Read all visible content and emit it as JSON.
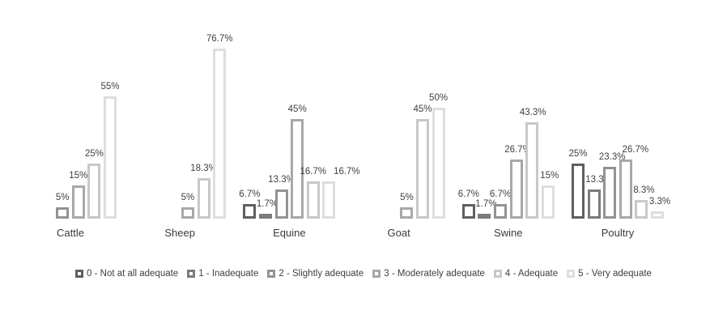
{
  "chart_data": {
    "type": "bar",
    "title": "",
    "categories": [
      "Cattle",
      "Sheep",
      "Equine",
      "Goat",
      "Swine",
      "Poultry"
    ],
    "value_unit": "%",
    "ylim": [
      0,
      80
    ],
    "grid": false,
    "axes_visible": false,
    "legend_position": "bottom",
    "series": [
      {
        "name": "0 - Not at all adequate",
        "color": "#5f5f5f",
        "values": [
          null,
          null,
          6.7,
          null,
          6.7,
          25
        ],
        "labels": [
          null,
          null,
          "6.7%",
          null,
          "6.7%",
          "25%"
        ],
        "label_dx": [
          0,
          0,
          0,
          0,
          0,
          0
        ]
      },
      {
        "name": "1 - Inadequate",
        "color": "#7b7b7b",
        "values": [
          null,
          null,
          1.7,
          null,
          1.7,
          13.3
        ],
        "labels": [
          null,
          null,
          "1.7%",
          null,
          "1.7%",
          "13.3%"
        ],
        "label_dx": [
          0,
          0,
          2,
          0,
          2,
          6
        ]
      },
      {
        "name": "2 - Slightly adequate",
        "color": "#939393",
        "values": [
          5,
          null,
          13.3,
          null,
          6.7,
          23.3
        ],
        "labels": [
          "5%",
          null,
          "13.3%",
          null,
          "6.7%",
          "23.3%"
        ],
        "label_dx": [
          0,
          0,
          0,
          0,
          0,
          3
        ]
      },
      {
        "name": "3 - Moderately adequate",
        "color": "#a8a8a8",
        "values": [
          15,
          5,
          45,
          5,
          26.7,
          26.7
        ],
        "labels": [
          "15%",
          "5%",
          "45%",
          "5%",
          "26.7%",
          "26.7%"
        ],
        "label_dx": [
          0,
          0,
          0,
          0,
          2,
          12
        ]
      },
      {
        "name": "4 - Adequate",
        "color": "#c8c8c8",
        "values": [
          25,
          18.3,
          16.7,
          45,
          43.3,
          8.3
        ],
        "labels": [
          "25%",
          "18.3%",
          "16.7%",
          "45%",
          "43.3%",
          "8.3%"
        ],
        "label_dx": [
          0,
          0,
          0,
          0,
          1,
          3
        ]
      },
      {
        "name": "5 - Very adequate",
        "color": "#dedede",
        "values": [
          55,
          76.7,
          16.7,
          50,
          15,
          3.3
        ],
        "labels": [
          "55%",
          "76.7%",
          "16.7%",
          "50%",
          "15%",
          "3.3%"
        ],
        "label_dx": [
          0,
          0,
          22,
          0,
          2,
          3
        ]
      }
    ]
  }
}
